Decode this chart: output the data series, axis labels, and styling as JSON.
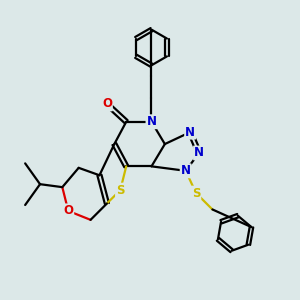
{
  "bg_color": "#dce8e8",
  "bond_color": "#000000",
  "n_color": "#0000cc",
  "o_color": "#dd0000",
  "s_color": "#ccbb00",
  "line_width": 1.6,
  "font_size": 8.5,
  "fig_size": [
    3.0,
    3.0
  ],
  "dpi": 100,
  "xlim": [
    0,
    10
  ],
  "ylim": [
    0,
    10
  ]
}
